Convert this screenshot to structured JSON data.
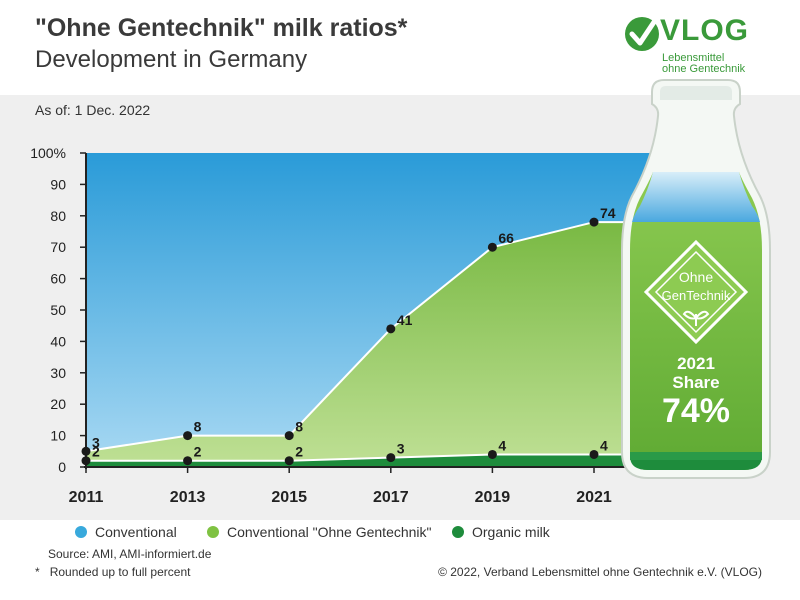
{
  "header": {
    "title": "\"Ohne Gentechnik\" milk ratios*",
    "subtitle": "Development in Germany",
    "as_of": "As of: 1 Dec. 2022"
  },
  "logo": {
    "word": "VLOG",
    "line1": "Lebensmittel",
    "line2": "ohne Gentechnik",
    "icon": "vlog-check-icon",
    "color": "#3a9a3a"
  },
  "bottle": {
    "seal_line1": "Ohne",
    "seal_line2": "GenTechnik",
    "seal_icon": "plant-icon",
    "year": "2021",
    "share_label": "Share",
    "share_value": "74%"
  },
  "legend": [
    {
      "label": "Conventional",
      "color": "#38a9dc"
    },
    {
      "label": "Conventional \"Ohne Gentechnik\"",
      "color": "#7fc242"
    },
    {
      "label": "Organic milk",
      "color": "#1e8c3c"
    }
  ],
  "footer": {
    "source": "Source: AMI, AMI-informiert.de",
    "footnote_mark": "*",
    "footnote": "Rounded up to full percent",
    "copyright": "© 2022, Verband Lebensmittel ohne Gentechnik e.V. (VLOG)"
  },
  "chart_data": {
    "type": "area",
    "x": [
      2011,
      2013,
      2015,
      2017,
      2019,
      2021
    ],
    "x_tick_labels": [
      "2011",
      "2013",
      "2015",
      "2017",
      "2019",
      "2021"
    ],
    "y_tick_labels": [
      "0",
      "10",
      "20",
      "30",
      "40",
      "50",
      "60",
      "70",
      "80",
      "90",
      "100%"
    ],
    "ylim": [
      0,
      100
    ],
    "series": [
      {
        "name": "Conventional \"Ohne Gentechnik\"",
        "color": "#7fc242",
        "values": [
          3,
          8,
          8,
          41,
          66,
          74
        ],
        "labels": [
          "3",
          "8",
          "8",
          "41",
          "66",
          "74"
        ]
      },
      {
        "name": "Organic milk",
        "color": "#1e8c3c",
        "values": [
          2,
          2,
          2,
          3,
          4,
          4
        ],
        "labels": [
          "2",
          "2",
          "2",
          "3",
          "4",
          "4"
        ]
      }
    ],
    "background_series": {
      "name": "Conventional",
      "color": "#38a9dc"
    },
    "stacked": true,
    "grid": false
  }
}
